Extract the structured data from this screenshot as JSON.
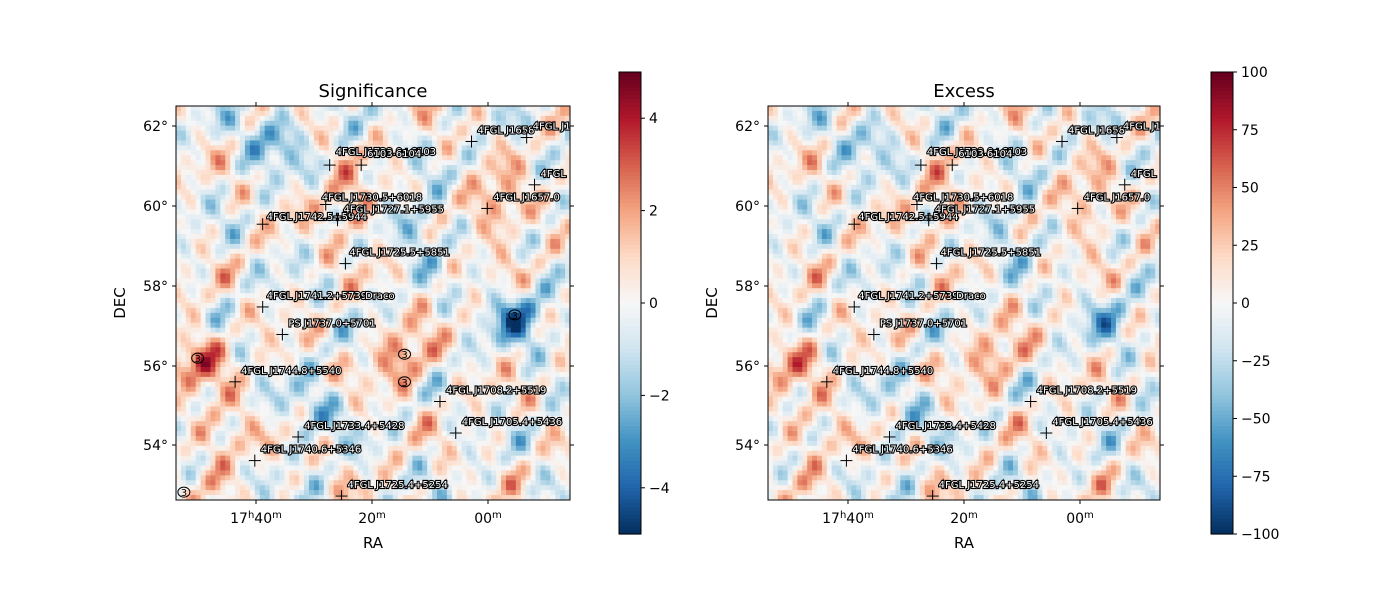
{
  "figure": {
    "background": "#ffffff"
  },
  "chart_data": [
    {
      "type": "heatmap",
      "title": "Significance",
      "xlabel": "RA",
      "ylabel": "DEC",
      "x_ticks": [
        {
          "base": "17",
          "sup1": "h",
          "mid": "40",
          "sup2": "m"
        },
        {
          "base": "",
          "sup1": "",
          "mid": "20",
          "sup2": "m"
        },
        {
          "base": "",
          "sup1": "",
          "mid": "00",
          "sup2": "m"
        }
      ],
      "y_ticks": [
        "62°",
        "60°",
        "58°",
        "56°",
        "54°"
      ],
      "colorbar": {
        "min": -5,
        "max": 5,
        "ticks": [
          "4",
          "2",
          "0",
          "−2",
          "−4"
        ],
        "tick_values": [
          4,
          2,
          0,
          -2,
          -4
        ],
        "colormap": "RdBu_r"
      },
      "hotspots": [
        {
          "sign": 1,
          "strength": 2.8
        },
        {
          "sign": 1,
          "strength": 2.5
        },
        {
          "sign": 1,
          "strength": 2.6
        },
        {
          "sign": -1,
          "strength": 3.0
        },
        {
          "sign": -1,
          "strength": 2.4
        },
        {
          "sign": 1,
          "strength": 2.0
        },
        {
          "sign": -1,
          "strength": 2.0
        },
        {
          "sign": 1,
          "strength": 2.2
        },
        {
          "sign": -1,
          "strength": 1.8
        }
      ],
      "contour_labels": [
        "3",
        "3",
        "3",
        "3",
        "3"
      ],
      "markers": [
        {
          "label": "4FGL J1729.0+6103",
          "dec": 60.7
        },
        {
          "label": "6103 6104",
          "dec": 60.7
        },
        {
          "label": "4FGL J1730.5+6018",
          "dec": 60.0
        },
        {
          "label": "4FGL J1742.5+5944",
          "dec": 59.5
        },
        {
          "label": "4FGL J1727.1+5955",
          "dec": 59.6
        },
        {
          "label": "4FGL J1725.5+5851",
          "dec": 58.5
        },
        {
          "label": "4FGL J1741.2+5739",
          "dec": 57.4
        },
        {
          "label": "Draco",
          "dec": 57.5
        },
        {
          "label": "PS J1737.0+5701",
          "dec": 56.8
        },
        {
          "label": "4FGL J1744.8+5540",
          "dec": 55.5
        },
        {
          "label": "4FGL J1708.2+5519",
          "dec": 55.0
        },
        {
          "label": "4FGL J1733.4+5428",
          "dec": 54.2
        },
        {
          "label": "4FGL J1705.4+5436",
          "dec": 54.3
        },
        {
          "label": "4FGL J1740.6+5346",
          "dec": 53.6
        },
        {
          "label": "4FGL J1725.4+5254",
          "dec": 52.6
        },
        {
          "label": "4FGL J1657.0",
          "dec": 59.9
        },
        {
          "label": "4FGL J1658",
          "dec": 61.6
        },
        {
          "label": "4FGL J1",
          "dec": 61.7
        },
        {
          "label": "4FGL",
          "dec": 60.5
        }
      ]
    },
    {
      "type": "heatmap",
      "title": "Excess",
      "xlabel": "RA",
      "ylabel": "DEC",
      "x_ticks": [
        {
          "base": "17",
          "sup1": "h",
          "mid": "40",
          "sup2": "m"
        },
        {
          "base": "",
          "sup1": "",
          "mid": "20",
          "sup2": "m"
        },
        {
          "base": "",
          "sup1": "",
          "mid": "00",
          "sup2": "m"
        }
      ],
      "y_ticks": [
        "62°",
        "60°",
        "58°",
        "56°",
        "54°"
      ],
      "colorbar": {
        "min": -100,
        "max": 100,
        "ticks": [
          "100",
          "75",
          "50",
          "25",
          "0",
          "−25",
          "−50",
          "−75",
          "−100"
        ],
        "tick_values": [
          100,
          75,
          50,
          25,
          0,
          -25,
          -50,
          -75,
          -100
        ],
        "colormap": "RdBu_r"
      },
      "hotspots": [
        {
          "sign": 1,
          "strength": 2.0
        },
        {
          "sign": 1,
          "strength": 2.0
        },
        {
          "sign": 1,
          "strength": 2.0
        },
        {
          "sign": -1,
          "strength": 1.6
        },
        {
          "sign": -1,
          "strength": 1.6
        },
        {
          "sign": 1,
          "strength": 1.6
        },
        {
          "sign": -1,
          "strength": 1.6
        },
        {
          "sign": 1,
          "strength": 1.8
        },
        {
          "sign": -1,
          "strength": 1.4
        }
      ],
      "contour_labels": [],
      "markers": [
        {
          "label": "4FGL J1729.0+6103",
          "dec": 60.7
        },
        {
          "label": "6103 6104",
          "dec": 60.7
        },
        {
          "label": "4FGL J1730.5+6018",
          "dec": 60.0
        },
        {
          "label": "4FGL J1742.5+5944",
          "dec": 59.5
        },
        {
          "label": "4FGL J1727.1+5955",
          "dec": 59.6
        },
        {
          "label": "4FGL J1725.5+5851",
          "dec": 58.5
        },
        {
          "label": "4FGL J1741.2+5739",
          "dec": 57.4
        },
        {
          "label": "Draco",
          "dec": 57.5
        },
        {
          "label": "PS J1737.0+5701",
          "dec": 56.8
        },
        {
          "label": "4FGL J1744.8+5540",
          "dec": 55.5
        },
        {
          "label": "4FGL J1708.2+5519",
          "dec": 55.0
        },
        {
          "label": "4FGL J1733.4+5428",
          "dec": 54.2
        },
        {
          "label": "4FGL J1705.4+5436",
          "dec": 54.3
        },
        {
          "label": "4FGL J1740.6+5346",
          "dec": 53.6
        },
        {
          "label": "4FGL J1725.4+5254",
          "dec": 52.6
        },
        {
          "label": "4FGL J1657.0",
          "dec": 59.9
        },
        {
          "label": "4FGL J1658",
          "dec": 61.6
        },
        {
          "label": "4FGL J1",
          "dec": 61.7
        },
        {
          "label": "4FGL",
          "dec": 60.5
        }
      ]
    }
  ]
}
